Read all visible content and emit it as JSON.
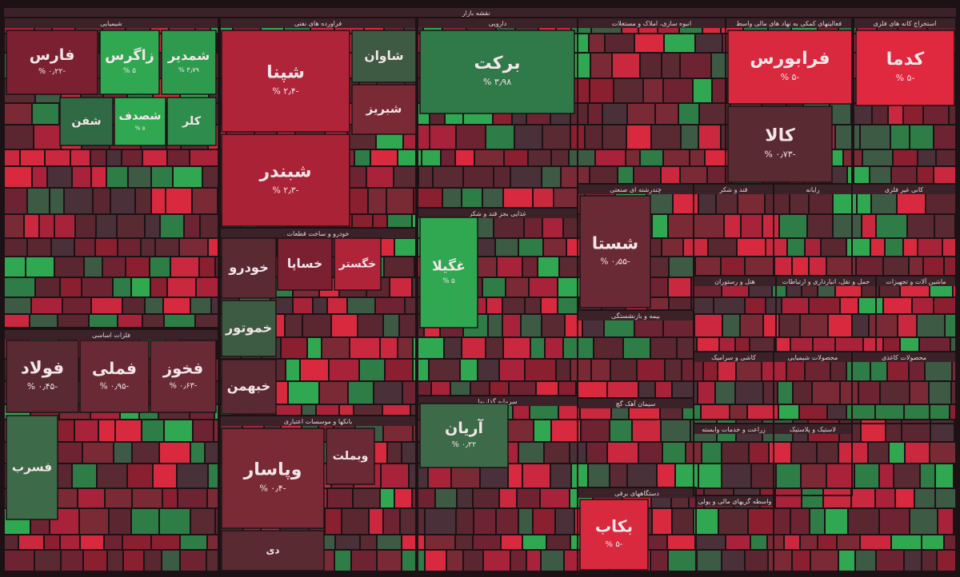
{
  "title": "نقشه بازار",
  "sectors": [
    {
      "name": "شیمیایی",
      "tiles": [
        {
          "label": "فارس",
          "change": "-۰٫۲۲ %",
          "color": "#7a2030"
        },
        {
          "label": "زاگرس",
          "change": "۵ %",
          "color": "#2fa851"
        },
        {
          "label": "شمدیر",
          "change": "۳٫۷۹ %",
          "color": "#2e9a4e"
        },
        {
          "label": "شفن",
          "color": "#2f6a45"
        },
        {
          "label": "شصدف",
          "change": "۵ %",
          "color": "#2fa851"
        },
        {
          "label": "کلر",
          "color": "#2e8d4c"
        }
      ]
    },
    {
      "name": "فراورده های نفتی",
      "tiles": [
        {
          "label": "شپنا",
          "change": "-۲٫۴ %",
          "color": "#b0243a"
        },
        {
          "label": "شبندر",
          "change": "-۲٫۳ %",
          "color": "#a92236"
        },
        {
          "label": "شاوان",
          "color": "#3f5a42"
        },
        {
          "label": "شبریز",
          "color": "#7a2a35"
        }
      ]
    },
    {
      "name": "دارویی",
      "tiles": [
        {
          "label": "برکت",
          "change": "۳٫۹۸ %",
          "color": "#2f7a48"
        }
      ]
    },
    {
      "name": "انبوه سازی، املاک و مستغلات",
      "tiles": []
    },
    {
      "name": "فعالیتهای کمکی به نهاد های مالی واسط",
      "tiles": [
        {
          "label": "فرابورس",
          "change": "-۵ %",
          "color": "#d9293f"
        },
        {
          "label": "کالا",
          "change": "-۰٫۷۳ %",
          "color": "#5a2a33"
        }
      ]
    },
    {
      "name": "استخراج کانه های فلزی",
      "tiles": [
        {
          "label": "کدما",
          "change": "-۵ %",
          "color": "#e0283f"
        }
      ]
    },
    {
      "name": "فلزات اساسی",
      "tiles": [
        {
          "label": "فولاد",
          "change": "-۰٫۴۵ %",
          "color": "#5a2a33"
        },
        {
          "label": "فملی",
          "change": "-۰٫۹۵ %",
          "color": "#6a2a35"
        },
        {
          "label": "فخوز",
          "change": "-۰٫۶۳ %",
          "color": "#6a2a35"
        },
        {
          "label": "فسرب",
          "color": "#3d6a48"
        }
      ]
    },
    {
      "name": "خودرو و ساخت قطعات",
      "tiles": [
        {
          "label": "خودرو",
          "color": "#5a2a33"
        },
        {
          "label": "خساپا",
          "color": "#7a2030"
        },
        {
          "label": "خگستر",
          "color": "#b0243a"
        },
        {
          "label": "خموتور",
          "color": "#3d5a42"
        },
        {
          "label": "خبهمن",
          "color": "#5a2a33"
        }
      ]
    },
    {
      "name": "غذایی بجز قند و شکر",
      "tiles": [
        {
          "label": "غگیلا",
          "change": "۵ %",
          "color": "#2fa851"
        }
      ]
    },
    {
      "name": "بانکها و موسسات اعتباری",
      "tiles": [
        {
          "label": "وپاسار",
          "change": "-۰٫۴ %",
          "color": "#7a2a35"
        },
        {
          "label": "وبملت",
          "color": "#6a2a35"
        },
        {
          "label": "دی",
          "color": "#5a2a33"
        }
      ]
    },
    {
      "name": "سرمایه گذاریها",
      "tiles": [
        {
          "label": "آریان",
          "change": "۰٫۲۲ %",
          "color": "#3d6a48"
        }
      ]
    },
    {
      "name": "چندرشته ای صنعتی",
      "tiles": [
        {
          "label": "شستا",
          "change": "-۰٫۵۵ %",
          "color": "#6a2a35"
        }
      ]
    },
    {
      "name": "بیمه و بازنشستگی",
      "tiles": []
    },
    {
      "name": "سیمان آهک گچ",
      "tiles": []
    },
    {
      "name": "دستگاههای برقی",
      "tiles": [
        {
          "label": "بکاب",
          "change": "-۵ %",
          "color": "#d9293f"
        }
      ]
    },
    {
      "name": "قند و شکر",
      "tiles": []
    },
    {
      "name": "رایانه",
      "tiles": []
    },
    {
      "name": "کانی غیر فلزی",
      "tiles": []
    },
    {
      "name": "هتل و رستوران",
      "tiles": []
    },
    {
      "name": "حمل و نقل، انبارداری و ارتباطات",
      "tiles": []
    },
    {
      "name": "ماشین آلات و تجهیزات",
      "tiles": []
    },
    {
      "name": "کاشی و سرامیک",
      "tiles": []
    },
    {
      "name": "محصولات شیمیایی",
      "tiles": []
    },
    {
      "name": "محصولات کاغذی",
      "tiles": []
    },
    {
      "name": "زراعت و خدمات وابسته",
      "tiles": []
    },
    {
      "name": "لاستیک و پلاستیک",
      "tiles": []
    },
    {
      "name": "واسطه گریهای مالی و پولی",
      "tiles": []
    }
  ]
}
